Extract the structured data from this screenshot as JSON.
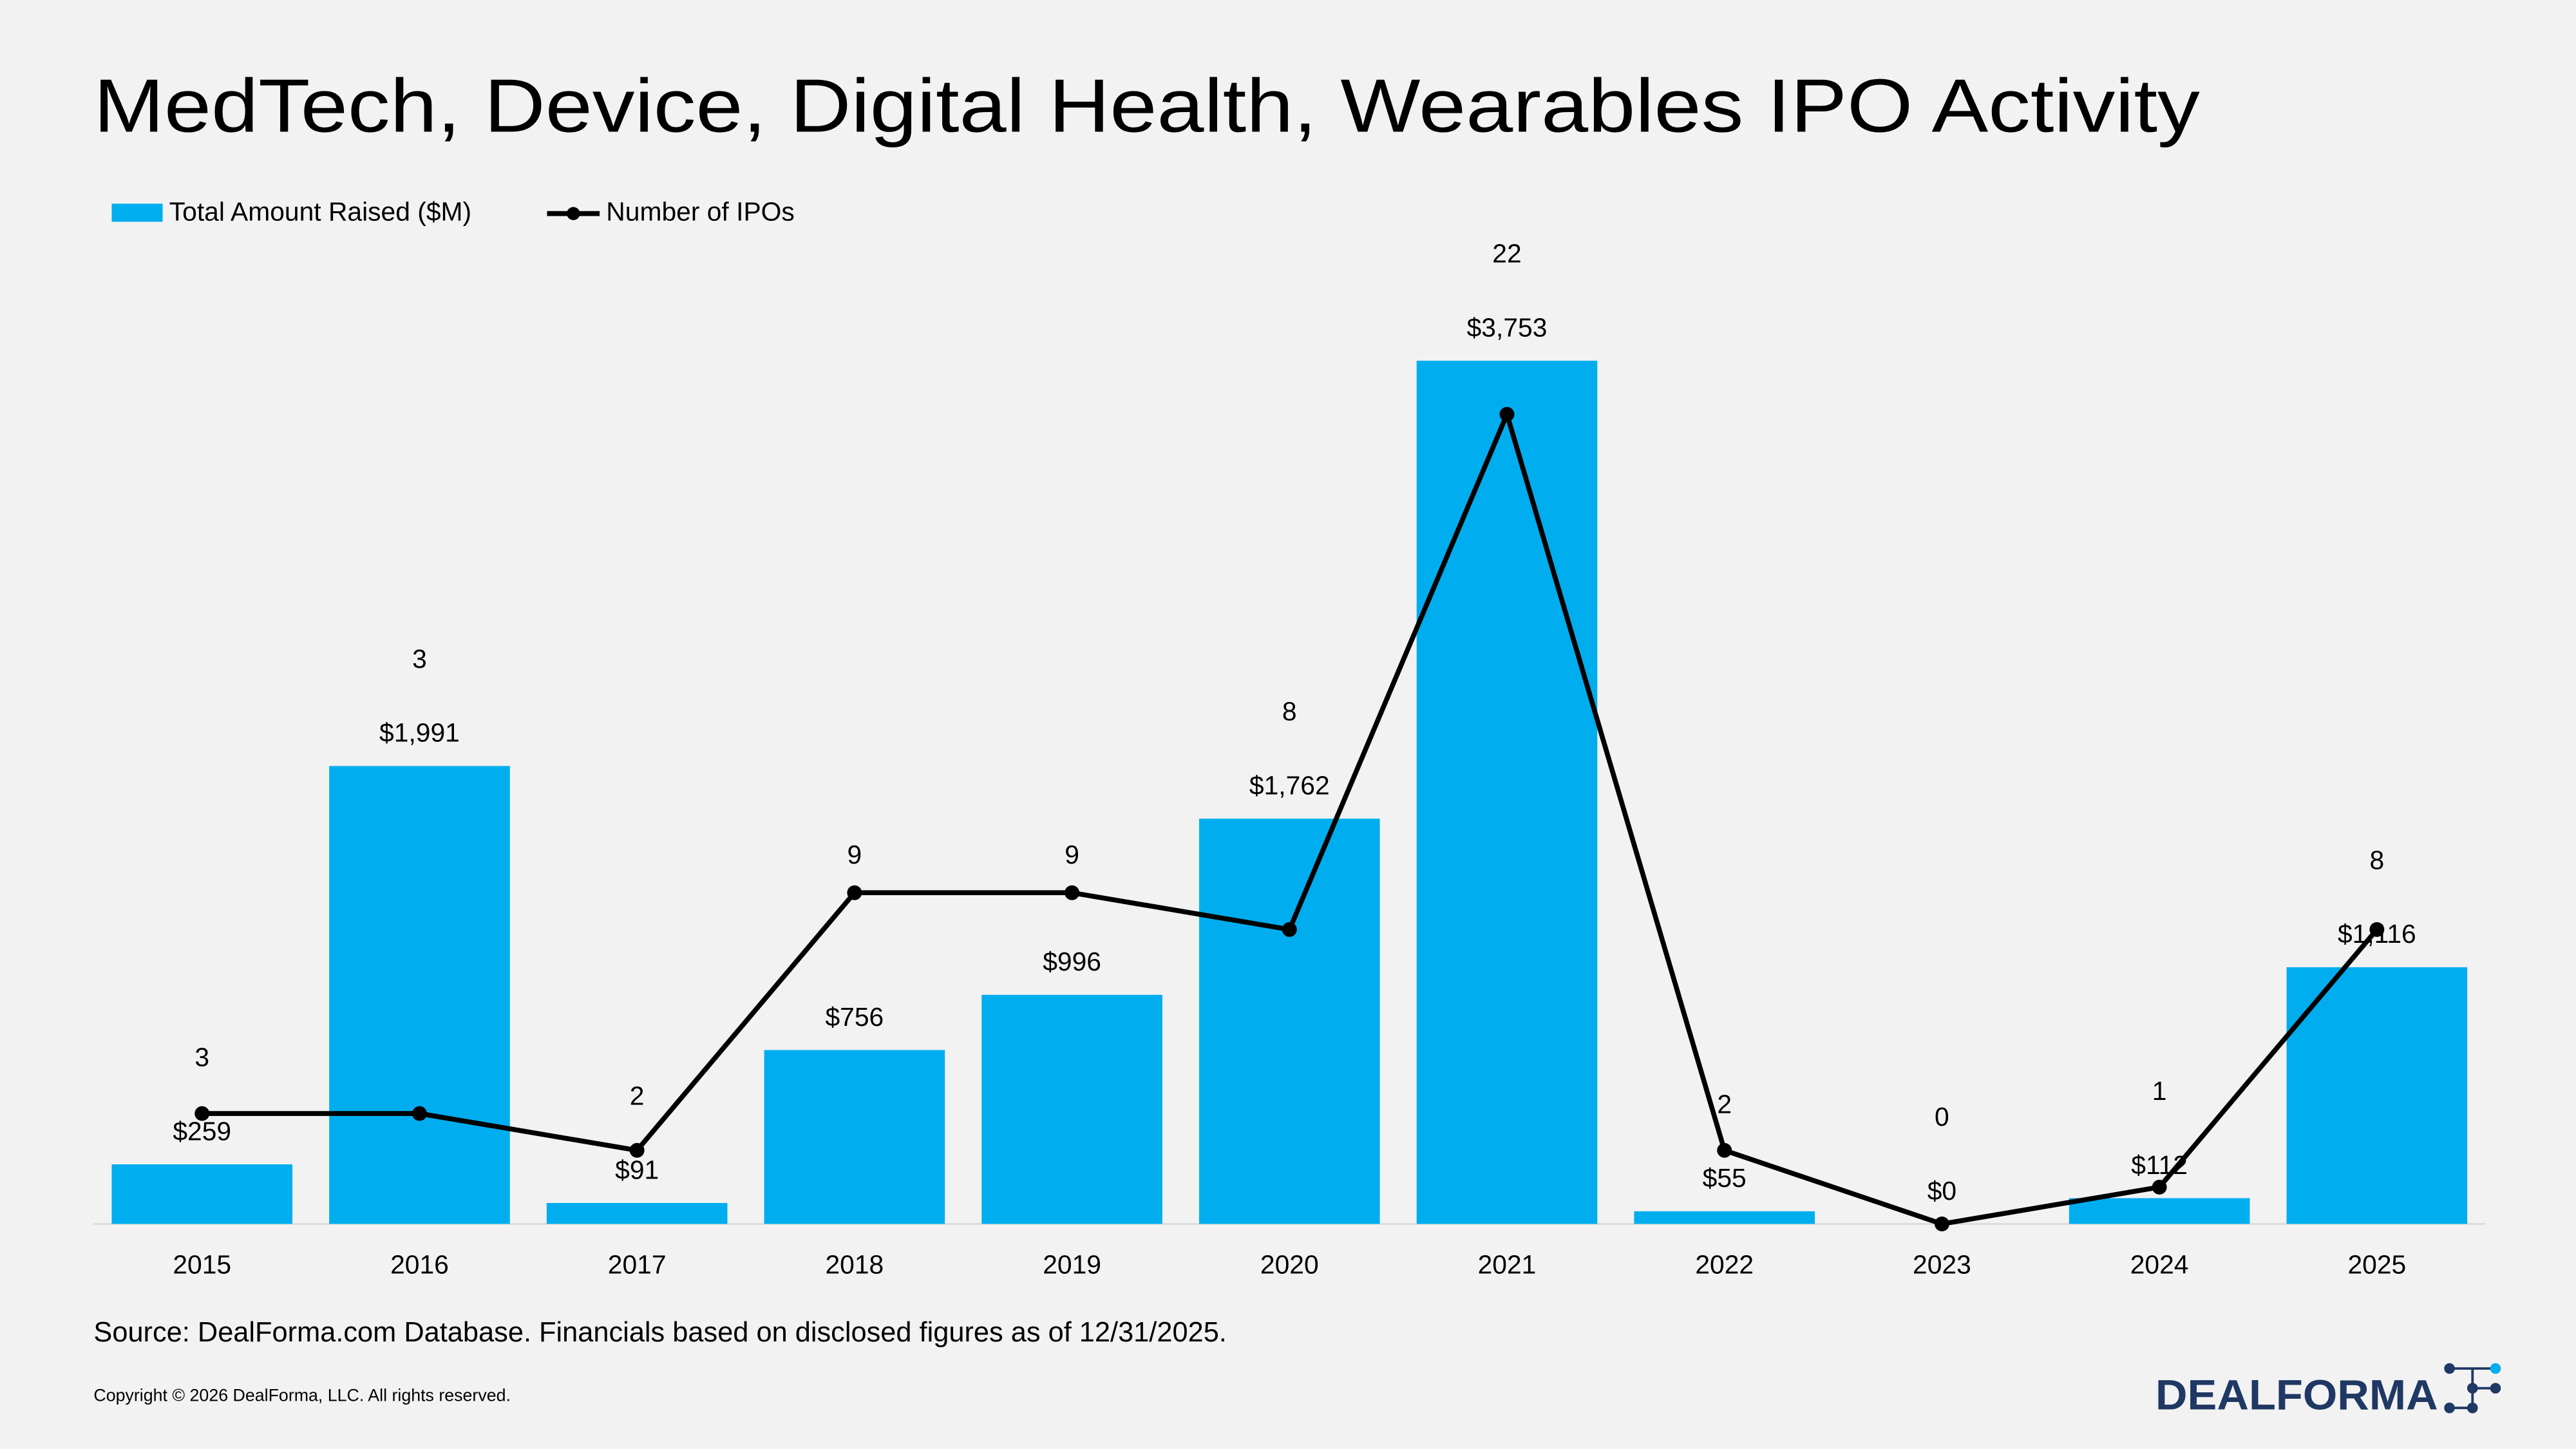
{
  "chart_data": {
    "type": "bar_line",
    "title": "MedTech, Device, Digital Health, Wearables IPO Activity",
    "categories": [
      "2015",
      "2016",
      "2017",
      "2018",
      "2019",
      "2020",
      "2021",
      "2022",
      "2023",
      "2024",
      "2025"
    ],
    "series": [
      {
        "name": "Total Amount Raised ($M)",
        "type": "bar",
        "color": "#00aeef",
        "values": [
          259,
          1991,
          91,
          756,
          996,
          1762,
          3753,
          55,
          0,
          112,
          1116
        ],
        "value_labels": [
          "$259",
          "$1,991",
          "$91",
          "$756",
          "$996",
          "$1,762",
          "$3,753",
          "$55",
          "$0",
          "$112",
          "$1,116"
        ]
      },
      {
        "name": "Number of IPOs",
        "type": "line",
        "axis": "y2",
        "color": "#000000",
        "values": [
          3,
          3,
          2,
          9,
          9,
          8,
          22,
          2,
          0,
          1,
          8
        ]
      }
    ],
    "ylim": [
      0,
      4000
    ],
    "y2lim": [
      0,
      25
    ],
    "legend": "top-left",
    "grid": false
  },
  "footer": {
    "source": "Source: DealForma.com Database. Financials based on disclosed figures as of 12/31/2025.",
    "copyright": "Copyright © 2026 DealForma, LLC. All rights reserved.",
    "logo": "DEALFORMA"
  }
}
